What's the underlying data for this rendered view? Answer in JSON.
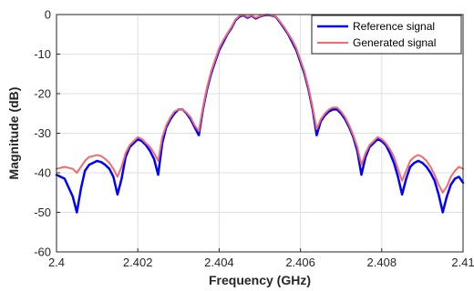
{
  "chart_data": {
    "type": "line",
    "xlabel": "Frequency (GHz)",
    "ylabel": "Magnitude (dB)",
    "xlim": [
      2.4,
      2.41
    ],
    "ylim": [
      -60,
      0
    ],
    "x_ticks": [
      2.4,
      2.402,
      2.404,
      2.406,
      2.408,
      2.41
    ],
    "x_tick_labels": [
      "2.4",
      "2.402",
      "2.404",
      "2.406",
      "2.408",
      "2.41"
    ],
    "y_ticks": [
      0,
      -10,
      -20,
      -30,
      -40,
      -50,
      -60
    ],
    "y_tick_labels": [
      "0",
      "-10",
      "-20",
      "-30",
      "-40",
      "-50",
      "-60"
    ],
    "grid": true,
    "legend_position": "top-right",
    "series": [
      {
        "name": "Reference signal",
        "color": "#0000ff",
        "points": [
          [
            2.4,
            -40.5
          ],
          [
            2.4002,
            -41.5
          ],
          [
            2.4004,
            -46.0
          ],
          [
            2.4005,
            -50.0
          ],
          [
            2.4006,
            -44.0
          ],
          [
            2.4007,
            -39.5
          ],
          [
            2.4008,
            -38.0
          ],
          [
            2.4009,
            -37.5
          ],
          [
            2.401,
            -37.0
          ],
          [
            2.4011,
            -37.3
          ],
          [
            2.4012,
            -38.0
          ],
          [
            2.4013,
            -39.0
          ],
          [
            2.4014,
            -41.0
          ],
          [
            2.4015,
            -45.5
          ],
          [
            2.4016,
            -41.5
          ],
          [
            2.4017,
            -36.0
          ],
          [
            2.4018,
            -33.5
          ],
          [
            2.4019,
            -32.5
          ],
          [
            2.402,
            -31.5
          ],
          [
            2.4021,
            -32.0
          ],
          [
            2.4022,
            -33.0
          ],
          [
            2.4023,
            -34.5
          ],
          [
            2.4024,
            -36.5
          ],
          [
            2.4025,
            -40.5
          ],
          [
            2.4026,
            -32.5
          ],
          [
            2.4027,
            -28.5
          ],
          [
            2.4028,
            -26.5
          ],
          [
            2.4029,
            -25.0
          ],
          [
            2.403,
            -24.0
          ],
          [
            2.4031,
            -24.0
          ],
          [
            2.4032,
            -25.0
          ],
          [
            2.4033,
            -26.5
          ],
          [
            2.4034,
            -28.5
          ],
          [
            2.4035,
            -30.5
          ],
          [
            2.4036,
            -24.0
          ],
          [
            2.4037,
            -19.0
          ],
          [
            2.4038,
            -15.0
          ],
          [
            2.4039,
            -12.0
          ],
          [
            2.404,
            -9.0
          ],
          [
            2.4041,
            -7.0
          ],
          [
            2.4042,
            -5.0
          ],
          [
            2.4043,
            -3.5
          ],
          [
            2.4044,
            -1.5
          ],
          [
            2.4045,
            -0.5
          ],
          [
            2.4046,
            -0.2
          ],
          [
            2.4047,
            -0.8
          ],
          [
            2.4048,
            -0.3
          ],
          [
            2.4049,
            -1.0
          ],
          [
            2.405,
            -0.5
          ],
          [
            2.4051,
            -0.2
          ],
          [
            2.4052,
            -0.1
          ],
          [
            2.4053,
            -0.3
          ],
          [
            2.4054,
            -0.6
          ],
          [
            2.4055,
            -2.0
          ],
          [
            2.4056,
            -3.5
          ],
          [
            2.4057,
            -5.0
          ],
          [
            2.4058,
            -7.0
          ],
          [
            2.4059,
            -9.0
          ],
          [
            2.406,
            -12.0
          ],
          [
            2.4061,
            -15.0
          ],
          [
            2.4062,
            -19.0
          ],
          [
            2.4063,
            -24.0
          ],
          [
            2.4064,
            -30.5
          ],
          [
            2.4065,
            -27.0
          ],
          [
            2.4066,
            -25.5
          ],
          [
            2.4067,
            -24.5
          ],
          [
            2.4068,
            -24.0
          ],
          [
            2.4069,
            -24.0
          ],
          [
            2.407,
            -25.0
          ],
          [
            2.4071,
            -26.5
          ],
          [
            2.4072,
            -28.5
          ],
          [
            2.4073,
            -31.0
          ],
          [
            2.4074,
            -34.5
          ],
          [
            2.4075,
            -40.5
          ],
          [
            2.4076,
            -36.0
          ],
          [
            2.4077,
            -33.5
          ],
          [
            2.4078,
            -32.5
          ],
          [
            2.4079,
            -31.5
          ],
          [
            2.408,
            -32.0
          ],
          [
            2.4081,
            -33.0
          ],
          [
            2.4082,
            -35.0
          ],
          [
            2.4083,
            -37.5
          ],
          [
            2.4084,
            -41.0
          ],
          [
            2.4085,
            -45.5
          ],
          [
            2.4086,
            -41.5
          ],
          [
            2.4087,
            -38.5
          ],
          [
            2.4088,
            -37.5
          ],
          [
            2.4089,
            -37.0
          ],
          [
            2.409,
            -37.5
          ],
          [
            2.4091,
            -38.5
          ],
          [
            2.4092,
            -40.0
          ],
          [
            2.4093,
            -42.0
          ],
          [
            2.4094,
            -45.5
          ],
          [
            2.4095,
            -50.0
          ],
          [
            2.4096,
            -46.0
          ],
          [
            2.4097,
            -43.0
          ],
          [
            2.4098,
            -41.5
          ],
          [
            2.4099,
            -41.0
          ],
          [
            2.41,
            -42.5
          ]
        ]
      },
      {
        "name": "Generated signal",
        "color": "#f26b6b",
        "points": [
          [
            2.4,
            -39.0
          ],
          [
            2.4002,
            -38.5
          ],
          [
            2.4004,
            -39.0
          ],
          [
            2.4005,
            -40.0
          ],
          [
            2.4006,
            -38.5
          ],
          [
            2.4007,
            -37.0
          ],
          [
            2.4008,
            -36.0
          ],
          [
            2.4009,
            -35.8
          ],
          [
            2.401,
            -35.5
          ],
          [
            2.4011,
            -35.8
          ],
          [
            2.4012,
            -36.5
          ],
          [
            2.4013,
            -37.5
          ],
          [
            2.4014,
            -39.0
          ],
          [
            2.4015,
            -41.0
          ],
          [
            2.4016,
            -38.5
          ],
          [
            2.4017,
            -35.0
          ],
          [
            2.4018,
            -33.0
          ],
          [
            2.4019,
            -32.0
          ],
          [
            2.402,
            -31.0
          ],
          [
            2.4021,
            -31.5
          ],
          [
            2.4022,
            -32.5
          ],
          [
            2.4023,
            -33.5
          ],
          [
            2.4024,
            -35.0
          ],
          [
            2.4025,
            -37.0
          ],
          [
            2.4026,
            -31.0
          ],
          [
            2.4027,
            -28.0
          ],
          [
            2.4028,
            -26.0
          ],
          [
            2.4029,
            -24.5
          ],
          [
            2.403,
            -24.0
          ],
          [
            2.4031,
            -24.0
          ],
          [
            2.4032,
            -24.8
          ],
          [
            2.4033,
            -26.0
          ],
          [
            2.4034,
            -28.0
          ],
          [
            2.4035,
            -29.5
          ],
          [
            2.4036,
            -23.5
          ],
          [
            2.4037,
            -18.5
          ],
          [
            2.4038,
            -14.5
          ],
          [
            2.4039,
            -11.5
          ],
          [
            2.404,
            -8.5
          ],
          [
            2.4041,
            -6.5
          ],
          [
            2.4042,
            -4.8
          ],
          [
            2.4043,
            -3.2
          ],
          [
            2.4044,
            -1.3
          ],
          [
            2.4045,
            -0.3
          ],
          [
            2.4046,
            -0.1
          ],
          [
            2.4047,
            -0.6
          ],
          [
            2.4048,
            -0.2
          ],
          [
            2.4049,
            -0.8
          ],
          [
            2.405,
            -0.4
          ],
          [
            2.4051,
            -0.1
          ],
          [
            2.4052,
            0.0
          ],
          [
            2.4053,
            -0.2
          ],
          [
            2.4054,
            -0.5
          ],
          [
            2.4055,
            -1.8
          ],
          [
            2.4056,
            -3.2
          ],
          [
            2.4057,
            -4.8
          ],
          [
            2.4058,
            -6.5
          ],
          [
            2.4059,
            -8.5
          ],
          [
            2.406,
            -11.5
          ],
          [
            2.4061,
            -14.5
          ],
          [
            2.4062,
            -18.5
          ],
          [
            2.4063,
            -23.5
          ],
          [
            2.4064,
            -29.0
          ],
          [
            2.4065,
            -26.5
          ],
          [
            2.4066,
            -25.0
          ],
          [
            2.4067,
            -24.0
          ],
          [
            2.4068,
            -23.5
          ],
          [
            2.4069,
            -23.5
          ],
          [
            2.407,
            -24.5
          ],
          [
            2.4071,
            -26.0
          ],
          [
            2.4072,
            -28.0
          ],
          [
            2.4073,
            -30.5
          ],
          [
            2.4074,
            -33.5
          ],
          [
            2.4075,
            -38.0
          ],
          [
            2.4076,
            -35.0
          ],
          [
            2.4077,
            -33.0
          ],
          [
            2.4078,
            -32.0
          ],
          [
            2.4079,
            -31.0
          ],
          [
            2.408,
            -31.5
          ],
          [
            2.4081,
            -32.5
          ],
          [
            2.4082,
            -34.0
          ],
          [
            2.4083,
            -36.0
          ],
          [
            2.4084,
            -39.0
          ],
          [
            2.4085,
            -42.0
          ],
          [
            2.4086,
            -39.5
          ],
          [
            2.4087,
            -37.0
          ],
          [
            2.4088,
            -36.0
          ],
          [
            2.4089,
            -35.5
          ],
          [
            2.409,
            -36.0
          ],
          [
            2.4091,
            -37.0
          ],
          [
            2.4092,
            -38.5
          ],
          [
            2.4093,
            -40.5
          ],
          [
            2.4094,
            -43.0
          ],
          [
            2.4095,
            -45.0
          ],
          [
            2.4096,
            -43.5
          ],
          [
            2.4097,
            -41.0
          ],
          [
            2.4098,
            -39.5
          ],
          [
            2.4099,
            -38.5
          ],
          [
            2.41,
            -39.0
          ]
        ]
      }
    ]
  }
}
